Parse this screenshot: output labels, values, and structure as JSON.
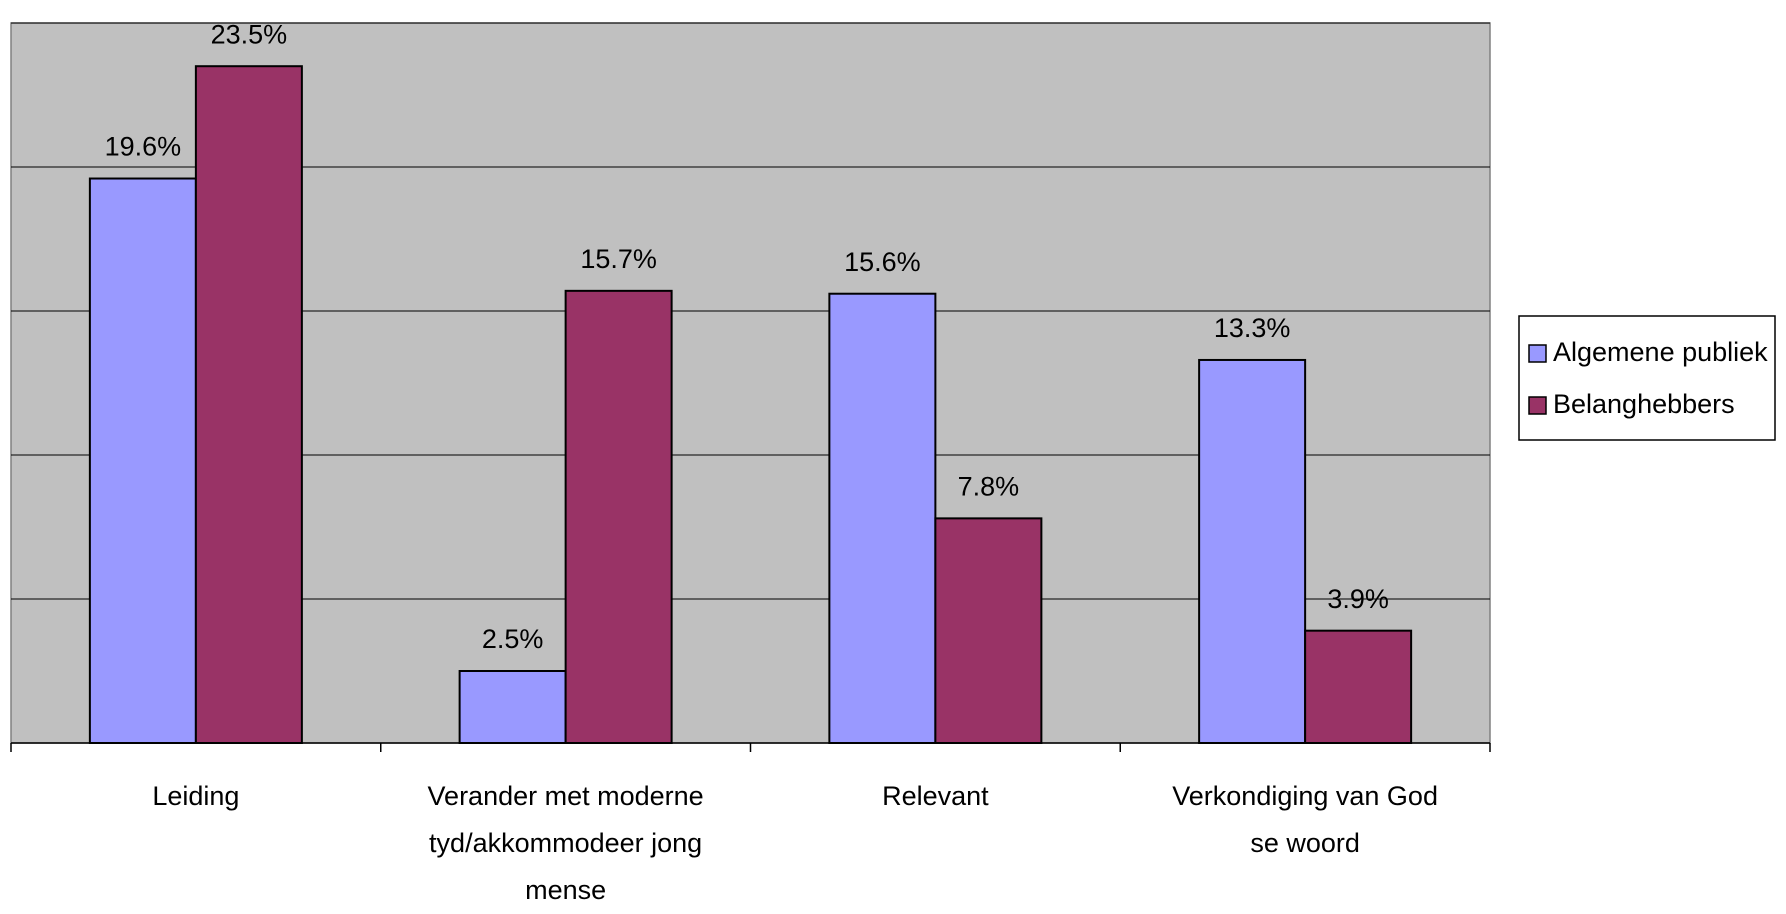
{
  "chart_data": {
    "type": "bar",
    "categories": [
      "Leiding",
      "Verander met moderne tyd/akkommodeer jong mense",
      "Relevant",
      "Verkondiging van God se woord"
    ],
    "series": [
      {
        "name": "Algemene publiek",
        "color": "#9999ff",
        "values": [
          19.6,
          2.5,
          15.6,
          13.3
        ],
        "value_labels": [
          "19.6%",
          "2.5%",
          "15.6%",
          "13.3%"
        ]
      },
      {
        "name": "Belanghebbers",
        "color": "#993366",
        "values": [
          23.5,
          15.7,
          7.8,
          3.9
        ],
        "value_labels": [
          "23.5%",
          "15.7%",
          "7.8%",
          "3.9%"
        ]
      }
    ],
    "ylim": [
      0,
      25
    ],
    "yticks": [
      0,
      5,
      10,
      15,
      20,
      25
    ],
    "grid": true,
    "legend": "right"
  }
}
